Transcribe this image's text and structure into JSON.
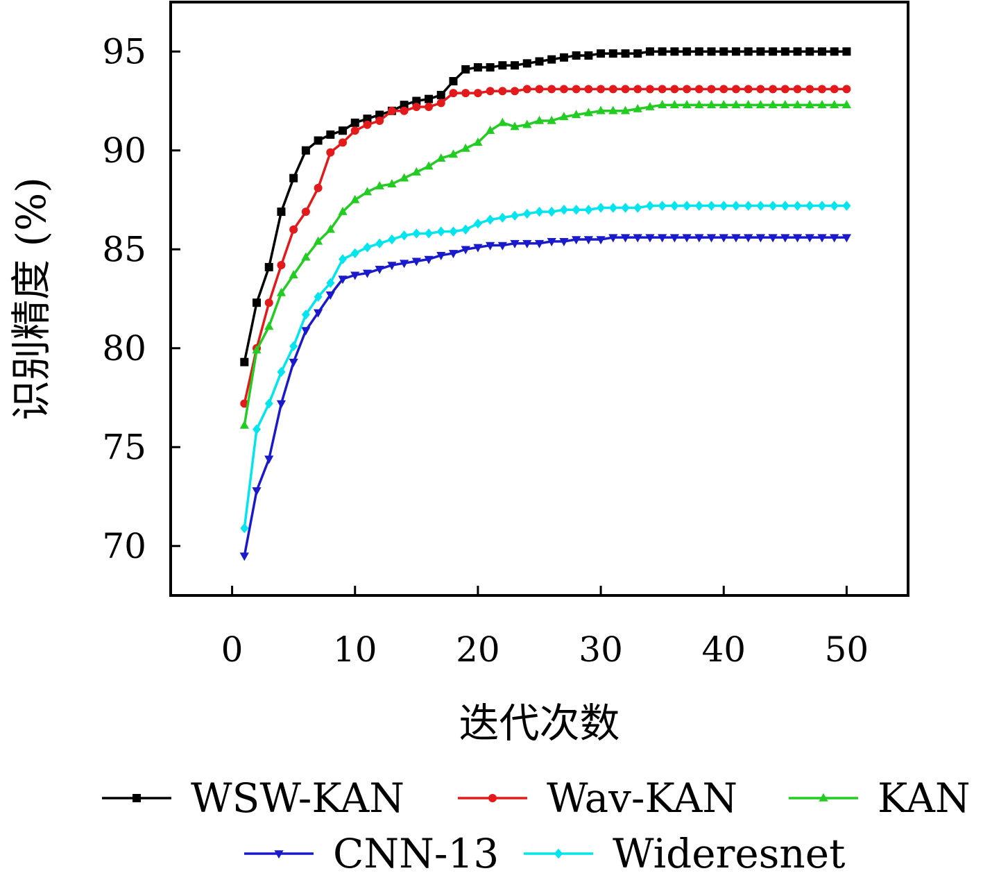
{
  "chart_data": {
    "type": "line",
    "title": "",
    "xlabel": "迭代次数",
    "ylabel": "识别精度 (%)",
    "xlim": [
      -5,
      55
    ],
    "ylim": [
      67.5,
      97.5
    ],
    "xticks": [
      0,
      10,
      20,
      30,
      40,
      50
    ],
    "yticks": [
      70,
      75,
      80,
      85,
      90,
      95
    ],
    "xtick_labels": [
      "0",
      "10",
      "20",
      "30",
      "40",
      "50"
    ],
    "ytick_labels": [
      "70",
      "75",
      "80",
      "85",
      "90",
      "95"
    ],
    "grid": false,
    "legend_placement": "bottom",
    "x": [
      1,
      2,
      3,
      4,
      5,
      6,
      7,
      8,
      9,
      10,
      11,
      12,
      13,
      14,
      15,
      16,
      17,
      18,
      19,
      20,
      21,
      22,
      23,
      24,
      25,
      26,
      27,
      28,
      29,
      30,
      31,
      32,
      33,
      34,
      35,
      36,
      37,
      38,
      39,
      40,
      41,
      42,
      43,
      44,
      45,
      46,
      47,
      48,
      49,
      50
    ],
    "series": [
      {
        "name": "WSW-KAN",
        "color": "#000000",
        "marker": "square",
        "values": [
          79.3,
          82.3,
          84.1,
          86.9,
          88.6,
          90.0,
          90.5,
          90.8,
          91.0,
          91.4,
          91.6,
          91.8,
          92.0,
          92.3,
          92.5,
          92.6,
          92.8,
          93.5,
          94.1,
          94.2,
          94.2,
          94.3,
          94.3,
          94.4,
          94.5,
          94.6,
          94.7,
          94.8,
          94.8,
          94.9,
          94.9,
          94.9,
          94.9,
          95.0,
          95.0,
          95.0,
          95.0,
          95.0,
          95.0,
          95.0,
          95.0,
          95.0,
          95.0,
          95.0,
          95.0,
          95.0,
          95.0,
          95.0,
          95.0,
          95.0
        ]
      },
      {
        "name": "Wav-KAN",
        "color": "#e31a1c",
        "marker": "circle",
        "values": [
          77.2,
          80.0,
          82.3,
          84.2,
          86.0,
          86.9,
          88.1,
          89.9,
          90.4,
          91.0,
          91.3,
          91.5,
          92.0,
          92.0,
          92.2,
          92.2,
          92.4,
          92.9,
          92.9,
          92.9,
          93.0,
          93.0,
          93.0,
          93.1,
          93.1,
          93.1,
          93.1,
          93.1,
          93.1,
          93.1,
          93.1,
          93.1,
          93.1,
          93.1,
          93.1,
          93.1,
          93.1,
          93.1,
          93.1,
          93.1,
          93.1,
          93.1,
          93.1,
          93.1,
          93.1,
          93.1,
          93.1,
          93.1,
          93.1,
          93.1
        ]
      },
      {
        "name": "KAN",
        "color": "#22cc22",
        "marker": "triangle-up",
        "values": [
          76.1,
          79.9,
          81.1,
          82.8,
          83.7,
          84.6,
          85.4,
          86.0,
          86.9,
          87.5,
          87.9,
          88.2,
          88.3,
          88.6,
          88.9,
          89.2,
          89.6,
          89.8,
          90.1,
          90.4,
          91.0,
          91.4,
          91.2,
          91.3,
          91.5,
          91.5,
          91.7,
          91.8,
          91.9,
          92.0,
          92.0,
          92.0,
          92.1,
          92.2,
          92.3,
          92.3,
          92.3,
          92.3,
          92.3,
          92.3,
          92.3,
          92.3,
          92.3,
          92.3,
          92.3,
          92.3,
          92.3,
          92.3,
          92.3,
          92.3
        ]
      },
      {
        "name": "CNN-13",
        "color": "#1a1acc",
        "marker": "triangle-down",
        "values": [
          69.5,
          72.8,
          74.4,
          77.2,
          79.3,
          80.9,
          81.8,
          82.7,
          83.5,
          83.7,
          83.8,
          84.0,
          84.2,
          84.3,
          84.4,
          84.5,
          84.7,
          84.8,
          85.0,
          85.1,
          85.2,
          85.2,
          85.3,
          85.3,
          85.3,
          85.4,
          85.4,
          85.5,
          85.5,
          85.5,
          85.6,
          85.6,
          85.6,
          85.6,
          85.6,
          85.6,
          85.6,
          85.6,
          85.6,
          85.6,
          85.6,
          85.6,
          85.6,
          85.6,
          85.6,
          85.6,
          85.6,
          85.6,
          85.6,
          85.6
        ]
      },
      {
        "name": "Wideresnet",
        "color": "#00e5ee",
        "marker": "diamond",
        "values": [
          70.9,
          75.9,
          77.2,
          78.8,
          80.1,
          81.7,
          82.6,
          83.3,
          84.5,
          84.8,
          85.1,
          85.3,
          85.5,
          85.7,
          85.8,
          85.8,
          85.9,
          85.9,
          86.0,
          86.3,
          86.5,
          86.6,
          86.7,
          86.8,
          86.9,
          86.9,
          87.0,
          87.0,
          87.0,
          87.1,
          87.1,
          87.1,
          87.1,
          87.2,
          87.2,
          87.2,
          87.2,
          87.2,
          87.2,
          87.2,
          87.2,
          87.2,
          87.2,
          87.2,
          87.2,
          87.2,
          87.2,
          87.2,
          87.2,
          87.2
        ]
      }
    ]
  }
}
